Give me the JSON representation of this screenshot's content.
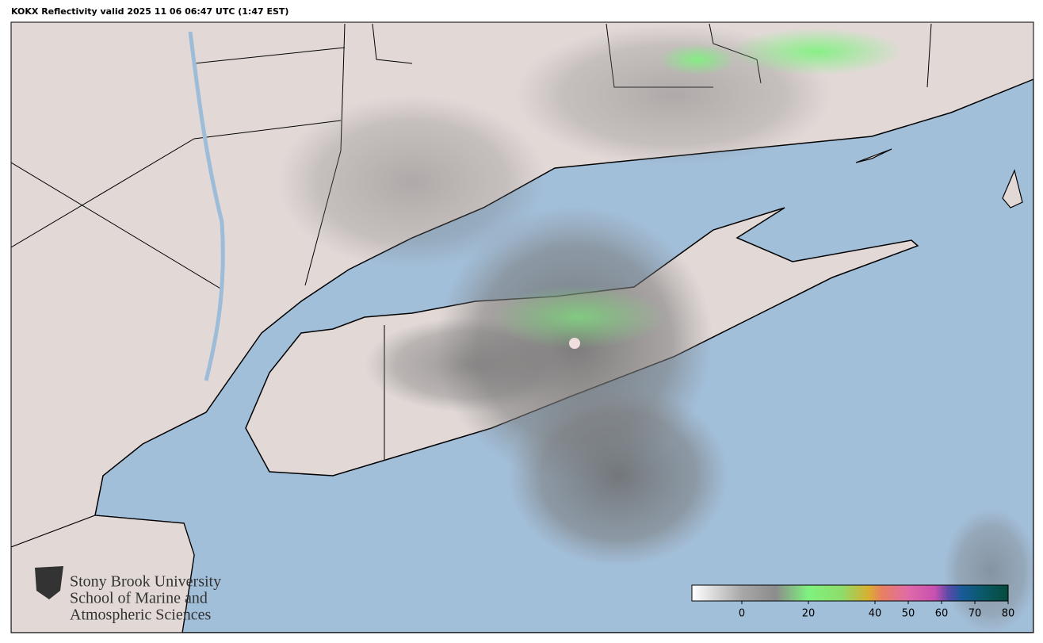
{
  "title": "KOKX Reflectivity valid 2025 11 06 06:47 UTC (1:47 EST)",
  "logo": {
    "lines": [
      "Stony Brook University",
      "School of Marine and",
      "Atmospheric Sciences"
    ]
  },
  "colorbar": {
    "lim": [
      -15,
      80
    ],
    "ticks": [
      0,
      20,
      40,
      50,
      60,
      70,
      80
    ],
    "stops": [
      {
        "value": -15,
        "color": "#ffffff"
      },
      {
        "value": 0,
        "color": "#a8a8a8"
      },
      {
        "value": 10,
        "color": "#8c8c8c"
      },
      {
        "value": 20,
        "color": "#7ef27e"
      },
      {
        "value": 30,
        "color": "#8fdc6a"
      },
      {
        "value": 38,
        "color": "#d8b030"
      },
      {
        "value": 42,
        "color": "#e88060"
      },
      {
        "value": 50,
        "color": "#e06aa8"
      },
      {
        "value": 58,
        "color": "#c850b0"
      },
      {
        "value": 62,
        "color": "#5a4aa8"
      },
      {
        "value": 66,
        "color": "#1a5a9a"
      },
      {
        "value": 72,
        "color": "#0a5a6a"
      },
      {
        "value": 80,
        "color": "#064a3a"
      }
    ]
  }
}
